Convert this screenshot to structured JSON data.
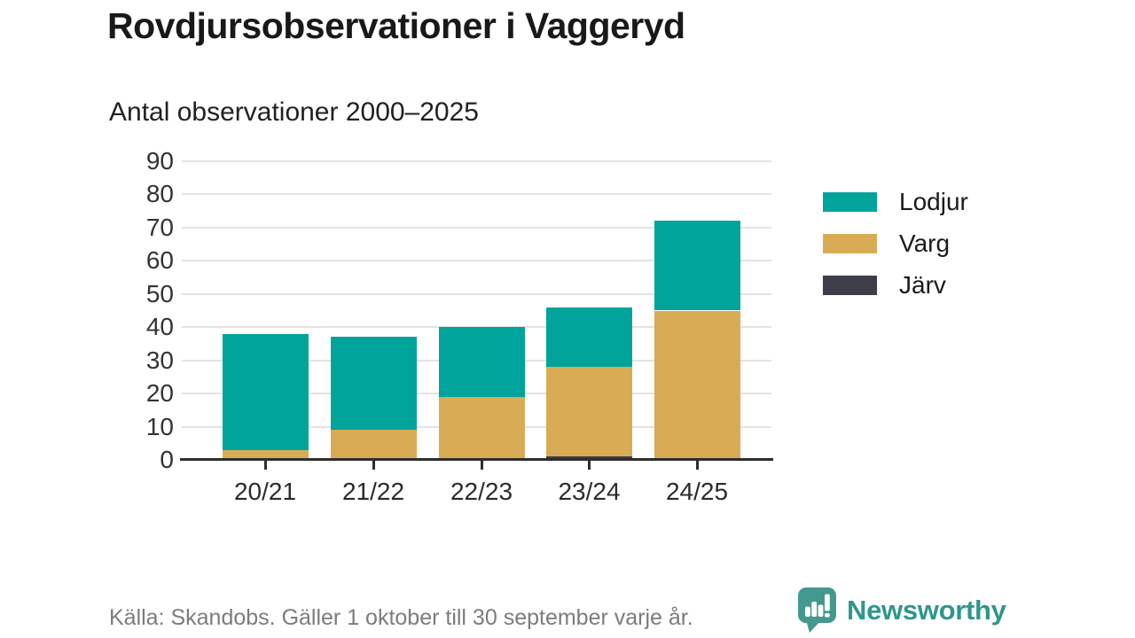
{
  "page": {
    "title": "Rovdjursobservationer i Vaggeryd",
    "subtitle": "Antal observationer 2000–2025",
    "source_note": "Källa: Skandobs. Gäller 1 oktober till 30 september varje år."
  },
  "branding": {
    "wordmark": "Newsworthy",
    "icon": "speech-bubble-bar-chart-exclamation",
    "icon_color": "#45988f",
    "wordmark_color": "#2f968d"
  },
  "chart_data": {
    "type": "bar",
    "stacked": true,
    "title": "Rovdjursobservationer i Vaggeryd",
    "subtitle": "Antal observationer 2000–2025",
    "categories": [
      "20/21",
      "21/22",
      "22/23",
      "23/24",
      "24/25"
    ],
    "series": [
      {
        "name": "Lodjur",
        "color": "#00a49a",
        "values": [
          35,
          28,
          21,
          18,
          27
        ]
      },
      {
        "name": "Varg",
        "color": "#d9ab55",
        "values": [
          3,
          9,
          19,
          27,
          45
        ]
      },
      {
        "name": "Järv",
        "color": "#3e3e4b",
        "values": [
          0,
          0,
          0,
          1,
          0
        ]
      }
    ],
    "stack_order_bottom_to_top": [
      "Järv",
      "Varg",
      "Lodjur"
    ],
    "totals": [
      38,
      37,
      40,
      46,
      72
    ],
    "xlabel": "",
    "ylabel": "",
    "ylim": [
      0,
      90
    ],
    "yticks": [
      0,
      10,
      20,
      30,
      40,
      50,
      60,
      70,
      80,
      90
    ],
    "grid": true,
    "grid_color": "#e3e3e3",
    "axis_color": "#2e2e2e",
    "legend_position": "right"
  }
}
